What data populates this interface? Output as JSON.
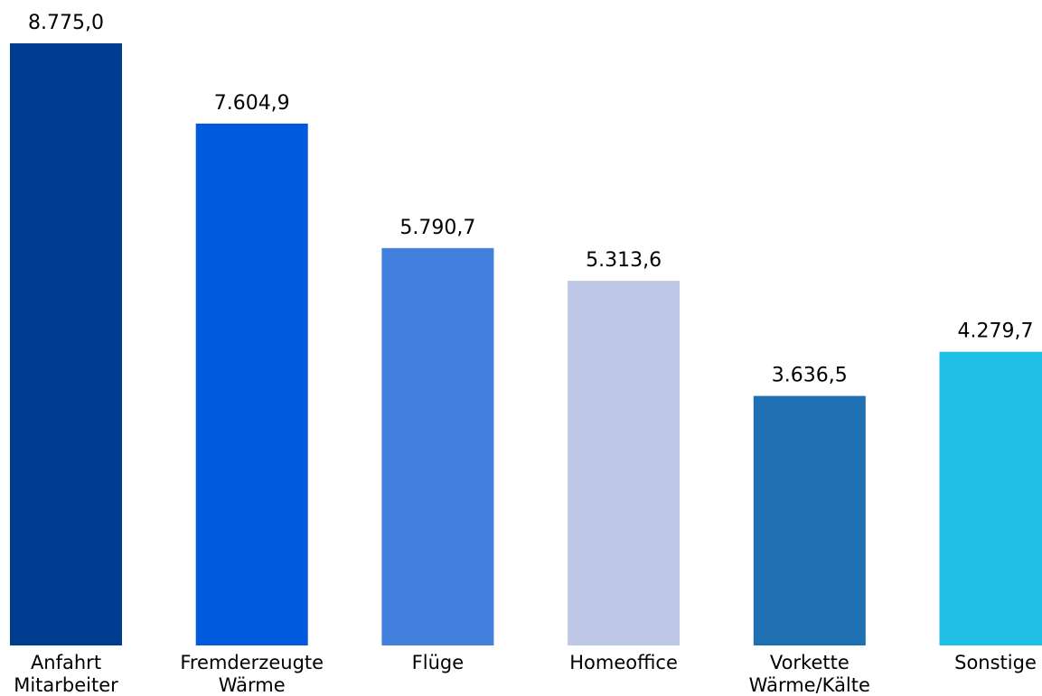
{
  "chart_data": {
    "type": "bar",
    "title": "",
    "xlabel": "",
    "ylabel": "",
    "ylim": [
      0,
      8775.0
    ],
    "grid": false,
    "legend": "none",
    "categories": [
      [
        "Anfahrt",
        "Mitarbeiter"
      ],
      [
        "Fremderzeugte",
        "Wärme"
      ],
      [
        "Flüge"
      ],
      [
        "Homeoffice"
      ],
      [
        "Vorkette",
        "Wärme/Kälte"
      ],
      [
        "Sonstige"
      ]
    ],
    "values": [
      8775.0,
      7604.9,
      5790.7,
      5313.6,
      3636.5,
      4279.7
    ],
    "value_labels": [
      "8.775,0",
      "7.604,9",
      "5.790,7",
      "5.313,6",
      "3.636,5",
      "4.279,7"
    ],
    "colors": [
      "#003c8f",
      "#005ade",
      "#4180dc",
      "#bec8e6",
      "#1f6fb3",
      "#20bfe5"
    ]
  }
}
